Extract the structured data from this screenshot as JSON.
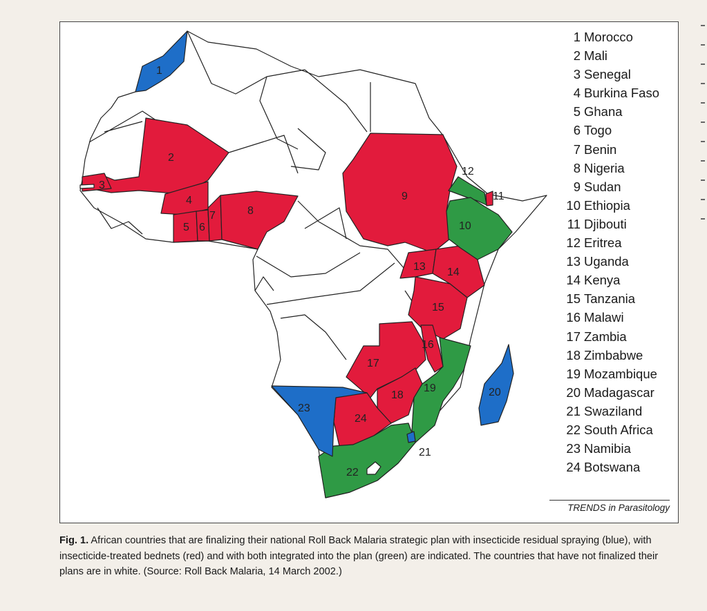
{
  "colors": {
    "spraying": "#1e6ec8",
    "bednets": "#e21b3c",
    "integrated": "#2f9a45",
    "not_finalized": "#ffffff"
  },
  "legend": [
    {
      "num": "1",
      "name": "Morocco"
    },
    {
      "num": "2",
      "name": "Mali"
    },
    {
      "num": "3",
      "name": "Senegal"
    },
    {
      "num": "4",
      "name": "Burkina Faso"
    },
    {
      "num": "5",
      "name": "Ghana"
    },
    {
      "num": "6",
      "name": "Togo"
    },
    {
      "num": "7",
      "name": "Benin"
    },
    {
      "num": "8",
      "name": "Nigeria"
    },
    {
      "num": "9",
      "name": "Sudan"
    },
    {
      "num": "10",
      "name": "Ethiopia"
    },
    {
      "num": "11",
      "name": "Djibouti"
    },
    {
      "num": "12",
      "name": "Eritrea"
    },
    {
      "num": "13",
      "name": "Uganda"
    },
    {
      "num": "14",
      "name": "Kenya"
    },
    {
      "num": "15",
      "name": "Tanzania"
    },
    {
      "num": "16",
      "name": "Malawi"
    },
    {
      "num": "17",
      "name": "Zambia"
    },
    {
      "num": "18",
      "name": "Zimbabwe"
    },
    {
      "num": "19",
      "name": "Mozambique"
    },
    {
      "num": "20",
      "name": "Madagascar"
    },
    {
      "num": "21",
      "name": "Swaziland"
    },
    {
      "num": "22",
      "name": "South Africa"
    },
    {
      "num": "23",
      "name": "Namibia"
    },
    {
      "num": "24",
      "name": "Botswana"
    }
  ],
  "map_labels": {
    "n1": "1",
    "n2": "2",
    "n3": "3",
    "n4": "4",
    "n5": "5",
    "n6": "6",
    "n7": "7",
    "n8": "8",
    "n9": "9",
    "n10": "10",
    "n11": "11",
    "n12": "12",
    "n13": "13",
    "n14": "14",
    "n15": "15",
    "n16": "16",
    "n17": "17",
    "n18": "18",
    "n19": "19",
    "n20": "20",
    "n21": "21",
    "n22": "22",
    "n23": "23",
    "n24": "24"
  },
  "credit": "TRENDS in Parasitology",
  "caption": {
    "label": "Fig. 1.",
    "text": "African countries that are finalizing their national Roll Back Malaria strategic plan with insecticide residual spraying (blue), with insecticide-treated bednets (red) and with both integrated into the plan (green) are indicated. The countries that have not finalized their plans are in white. (Source: Roll Back Malaria, 14 March 2002.)"
  }
}
